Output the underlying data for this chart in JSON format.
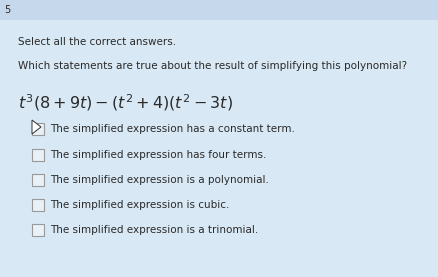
{
  "background_color": "#d8e8f4",
  "header_bg": "#c5d8ec",
  "page_number": "5",
  "instruction": "Select all the correct answers.",
  "question": "Which statements are true about the result of simplifying this polynomial?",
  "expression_latex": "$t^3(8 + 9t) - (t^2 + 4)(t^2 - 3t)$",
  "choices": [
    "The simplified expression has a constant term.",
    "The simplified expression has four terms.",
    "The simplified expression is a polynomial.",
    "The simplified expression is cubic.",
    "The simplified expression is a trinomial."
  ],
  "checkbox_color": "#e8f0f8",
  "checkbox_border": "#999999",
  "text_color": "#2a2a2a",
  "instruction_fontsize": 7.5,
  "question_fontsize": 7.5,
  "expression_fontsize": 11.5,
  "choice_fontsize": 7.5,
  "fig_width": 4.38,
  "fig_height": 2.77,
  "dpi": 100
}
